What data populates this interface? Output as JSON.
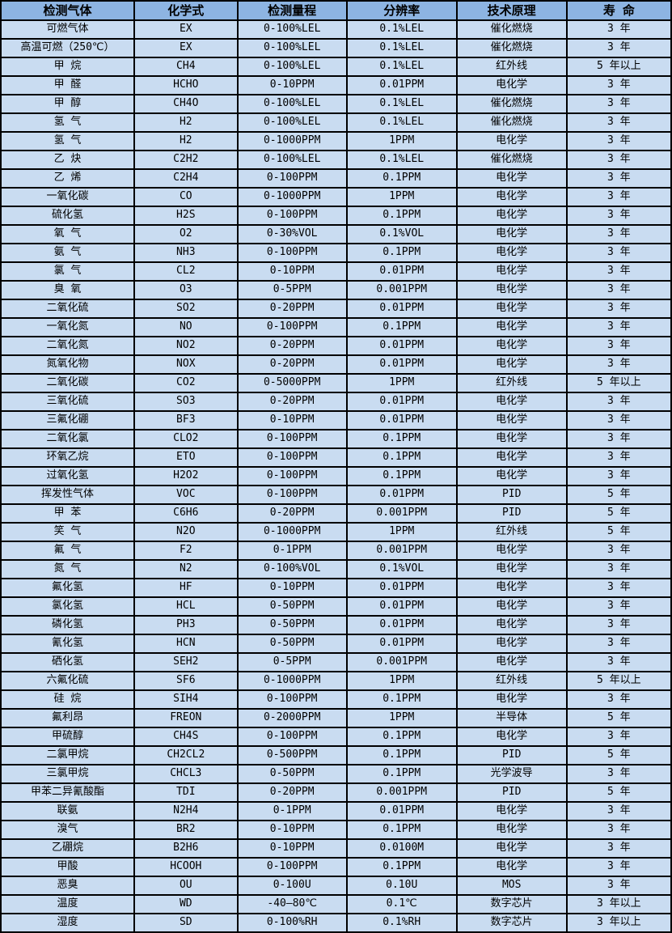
{
  "colors": {
    "header_bg": "#8DB4E2",
    "row_bg": "#C9DCF1",
    "border": "#000000",
    "text": "#000000"
  },
  "table": {
    "headers": [
      "检测气体",
      "化学式",
      "检测量程",
      "分辨率",
      "技术原理",
      "寿 命"
    ],
    "column_names": [
      "gas-name-cell",
      "chemical-formula-cell",
      "detection-range-cell",
      "resolution-cell",
      "technology-cell",
      "lifespan-cell"
    ],
    "rows": [
      [
        "可燃气体",
        "EX",
        "0-100%LEL",
        "0.1%LEL",
        "催化燃烧",
        "3 年"
      ],
      [
        "高温可燃（250℃）",
        "EX",
        "0-100%LEL",
        "0.1%LEL",
        "催化燃烧",
        "3 年"
      ],
      [
        "甲 烷",
        "CH4",
        "0-100%LEL",
        "0.1%LEL",
        "红外线",
        "5 年以上"
      ],
      [
        "甲 醛",
        "HCHO",
        "0-10PPM",
        "0.01PPM",
        "电化学",
        "3 年"
      ],
      [
        "甲 醇",
        "CH4O",
        "0-100%LEL",
        "0.1%LEL",
        "催化燃烧",
        "3 年"
      ],
      [
        "氢 气",
        "H2",
        "0-100%LEL",
        "0.1%LEL",
        "催化燃烧",
        "3 年"
      ],
      [
        "氢 气",
        "H2",
        "0-1000PPM",
        "1PPM",
        "电化学",
        "3 年"
      ],
      [
        "乙 炔",
        "C2H2",
        "0-100%LEL",
        "0.1%LEL",
        "催化燃烧",
        "3 年"
      ],
      [
        "乙 烯",
        "C2H4",
        "0-100PPM",
        "0.1PPM",
        "电化学",
        "3 年"
      ],
      [
        "一氧化碳",
        "CO",
        "0-1000PPM",
        "1PPM",
        "电化学",
        "3 年"
      ],
      [
        "硫化氢",
        "H2S",
        "0-100PPM",
        "0.1PPM",
        "电化学",
        "3 年"
      ],
      [
        "氧 气",
        "O2",
        "0-30%VOL",
        "0.1%VOL",
        "电化学",
        "3 年"
      ],
      [
        "氨 气",
        "NH3",
        "0-100PPM",
        "0.1PPM",
        "电化学",
        "3 年"
      ],
      [
        "氯 气",
        "CL2",
        "0-10PPM",
        "0.01PPM",
        "电化学",
        "3 年"
      ],
      [
        "臭 氧",
        "O3",
        "0-5PPM",
        "0.001PPM",
        "电化学",
        "3 年"
      ],
      [
        "二氧化硫",
        "SO2",
        "0-20PPM",
        "0.01PPM",
        "电化学",
        "3 年"
      ],
      [
        "一氧化氮",
        "NO",
        "0-100PPM",
        "0.1PPM",
        "电化学",
        "3 年"
      ],
      [
        "二氧化氮",
        "NO2",
        "0-20PPM",
        "0.01PPM",
        "电化学",
        "3 年"
      ],
      [
        "氮氧化物",
        "NOX",
        "0-20PPM",
        "0.01PPM",
        "电化学",
        "3 年"
      ],
      [
        "二氧化碳",
        "CO2",
        "0-5000PPM",
        "1PPM",
        "红外线",
        "5 年以上"
      ],
      [
        "三氧化硫",
        "SO3",
        "0-20PPM",
        "0.01PPM",
        "电化学",
        "3 年"
      ],
      [
        "三氟化硼",
        "BF3",
        "0-10PPM",
        "0.01PPM",
        "电化学",
        "3 年"
      ],
      [
        "二氧化氯",
        "CLO2",
        "0-100PPM",
        "0.1PPM",
        "电化学",
        "3 年"
      ],
      [
        "环氧乙烷",
        "ETO",
        "0-100PPM",
        "0.1PPM",
        "电化学",
        "3 年"
      ],
      [
        "过氧化氢",
        "H2O2",
        "0-100PPM",
        "0.1PPM",
        "电化学",
        "3 年"
      ],
      [
        "挥发性气体",
        "VOC",
        "0-100PPM",
        "0.01PPM",
        "PID",
        "5 年"
      ],
      [
        "甲 苯",
        "C6H6",
        "0-20PPM",
        "0.001PPM",
        "PID",
        "5 年"
      ],
      [
        "笑 气",
        "N2O",
        "0-1000PPM",
        "1PPM",
        "红外线",
        "5 年"
      ],
      [
        "氟 气",
        "F2",
        "0-1PPM",
        "0.001PPM",
        "电化学",
        "3 年"
      ],
      [
        "氮 气",
        "N2",
        "0-100%VOL",
        "0.1%VOL",
        "电化学",
        "3 年"
      ],
      [
        "氟化氢",
        "HF",
        "0-10PPM",
        "0.01PPM",
        "电化学",
        "3 年"
      ],
      [
        "氯化氢",
        "HCL",
        "0-50PPM",
        "0.01PPM",
        "电化学",
        "3 年"
      ],
      [
        "磷化氢",
        "PH3",
        "0-50PPM",
        "0.01PPM",
        "电化学",
        "3 年"
      ],
      [
        "氰化氢",
        "HCN",
        "0-50PPM",
        "0.01PPM",
        "电化学",
        "3 年"
      ],
      [
        "硒化氢",
        "SEH2",
        "0-5PPM",
        "0.001PPM",
        "电化学",
        "3 年"
      ],
      [
        "六氟化硫",
        "SF6",
        "0-1000PPM",
        "1PPM",
        "红外线",
        "5 年以上"
      ],
      [
        "硅 烷",
        "SIH4",
        "0-100PPM",
        "0.1PPM",
        "电化学",
        "3 年"
      ],
      [
        "氟利昂",
        "FREON",
        "0-2000PPM",
        "1PPM",
        "半导体",
        "5 年"
      ],
      [
        "甲硫醇",
        "CH4S",
        "0-100PPM",
        "0.1PPM",
        "电化学",
        "3 年"
      ],
      [
        "二氯甲烷",
        "CH2CL2",
        "0-500PPM",
        "0.1PPM",
        "PID",
        "5 年"
      ],
      [
        "三氯甲烷",
        "CHCL3",
        "0-50PPM",
        "0.1PPM",
        "光学波导",
        "3 年"
      ],
      [
        "甲苯二异氰酸酯",
        "TDI",
        "0-20PPM",
        "0.001PPM",
        "PID",
        "5 年"
      ],
      [
        "联氨",
        "N2H4",
        "0-1PPM",
        "0.01PPM",
        "电化学",
        "3 年"
      ],
      [
        "溴气",
        "BR2",
        "0-10PPM",
        "0.1PPM",
        "电化学",
        "3 年"
      ],
      [
        "乙硼烷",
        "B2H6",
        "0-10PPM",
        "0.0100M",
        "电化学",
        "3 年"
      ],
      [
        "甲酸",
        "HCOOH",
        "0-100PPM",
        "0.1PPM",
        "电化学",
        "3 年"
      ],
      [
        "恶臭",
        "OU",
        "0-100U",
        "0.10U",
        "MOS",
        "3 年"
      ],
      [
        "温度",
        "WD",
        "-40—80℃",
        "0.1℃",
        "数字芯片",
        "3 年以上"
      ],
      [
        "湿度",
        "SD",
        "0-100%RH",
        "0.1%RH",
        "数字芯片",
        "3 年以上"
      ]
    ]
  }
}
